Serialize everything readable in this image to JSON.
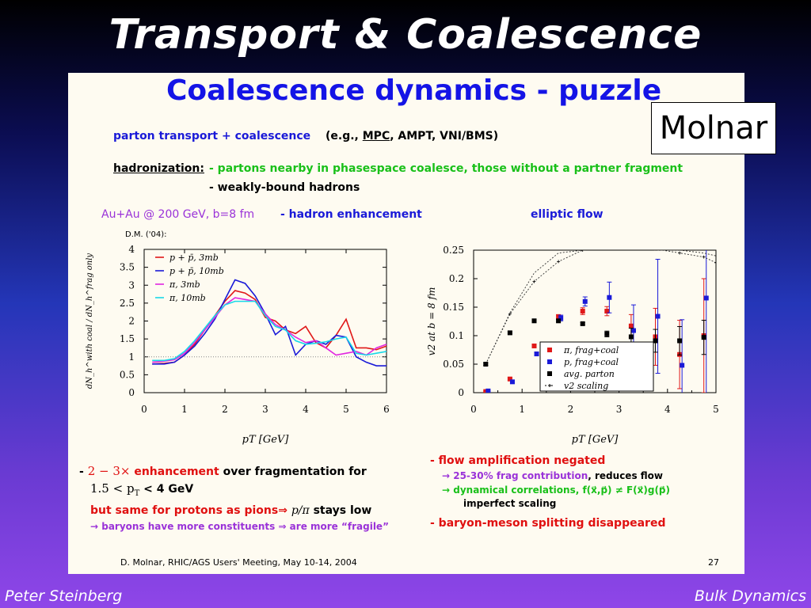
{
  "slide_title": "Transport & Coalescence",
  "label_box": "Molnar",
  "panel": {
    "title": "Coalescence dynamics - puzzle",
    "line1_a": "parton transport + coalescence",
    "line1_b": "(e.g.,",
    "line1_mpc": "MPC",
    "line1_c": ", AMPT, VNI/BMS)",
    "hadron_label": "hadronization:",
    "hadron_1": "- partons nearby in phasespace coalesce, those without a partner fragment",
    "hadron_2": "- weakly-bound hadrons",
    "left_head_a": "Au+Au @ 200 GeV, b=8 fm",
    "left_head_b": "- hadron enhancement",
    "right_head": "elliptic flow",
    "credit": "D.M. ('04):",
    "left_b1_a": "- ",
    "left_b1_b": "2 − 3×",
    "left_b1_c": "enhancement",
    "left_b1_d": "over fragmentation for",
    "left_b1_e": "1.5 < p",
    "left_b1_e_sub": "T",
    "left_b1_f": "< 4 GeV",
    "left_b2_a": "but same for protons as pions⇒",
    "left_b2_b": "p/π",
    "left_b2_c": "stays low",
    "left_b3": "→ baryons have more constituents ⇒ are more “fragile”",
    "right_b1": "- flow amplification negated",
    "right_b2_a": "→ 25-30% frag contribution",
    "right_b2_b": ", reduces flow",
    "right_b3": "→ dynamical correlations, f(x⃗,p⃗) ≠ F(x⃗)g(p⃗)",
    "right_b4": "imperfect scaling",
    "right_b5": "- baryon-meson splitting disappeared",
    "footer_credit": "D. Molnar, RHIC/AGS Users' Meeting, May 10-14, 2004",
    "page_num": "27"
  },
  "footer": {
    "left": "Peter Steinberg",
    "right": "Bulk Dynamics"
  },
  "chart_data": [
    {
      "type": "line",
      "xlabel": "pT [GeV]",
      "ylabel": "dN_h^with coal / dN_h^frag only",
      "xlim": [
        0,
        6
      ],
      "ylim": [
        0,
        4
      ],
      "xticks": [
        "0",
        "1",
        "2",
        "3",
        "4",
        "5",
        "6"
      ],
      "yticks": [
        "0",
        "0.5",
        "1",
        "1.5",
        "2",
        "2.5",
        "3",
        "3.5",
        "4"
      ],
      "reference_line": 1,
      "series": [
        {
          "name": "p + p̄, 3mb",
          "color": "#e01818",
          "x": [
            0.2,
            0.5,
            0.75,
            1.0,
            1.25,
            1.5,
            1.75,
            2.0,
            2.25,
            2.5,
            2.75,
            3.0,
            3.25,
            3.5,
            3.75,
            4.0,
            4.25,
            4.5,
            4.75,
            5.0,
            5.25,
            5.5,
            5.75,
            6.0
          ],
          "y": [
            0.8,
            0.82,
            0.85,
            1.05,
            1.35,
            1.75,
            2.15,
            2.55,
            2.85,
            2.78,
            2.6,
            2.1,
            2.0,
            1.75,
            1.65,
            1.85,
            1.4,
            1.25,
            1.6,
            2.05,
            1.25,
            1.25,
            1.2,
            1.3
          ]
        },
        {
          "name": "p + p̄, 10mb",
          "color": "#1a1ad8",
          "x": [
            0.2,
            0.5,
            0.75,
            1.0,
            1.25,
            1.5,
            1.75,
            2.0,
            2.25,
            2.5,
            2.75,
            3.0,
            3.25,
            3.5,
            3.75,
            4.0,
            4.25,
            4.5,
            4.75,
            5.0,
            5.25,
            5.5,
            5.75,
            6.0
          ],
          "y": [
            0.8,
            0.8,
            0.85,
            1.05,
            1.3,
            1.65,
            2.05,
            2.6,
            3.15,
            3.05,
            2.7,
            2.2,
            1.62,
            1.85,
            1.05,
            1.35,
            1.45,
            1.35,
            1.6,
            1.55,
            1.0,
            0.85,
            0.75,
            0.75
          ]
        },
        {
          "name": "π, 3mb",
          "color": "#e026e0",
          "x": [
            0.2,
            0.5,
            0.75,
            1.0,
            1.25,
            1.5,
            1.75,
            2.0,
            2.25,
            2.5,
            2.75,
            3.0,
            3.25,
            3.5,
            3.75,
            4.0,
            4.25,
            4.5,
            4.75,
            5.0,
            5.25,
            5.5,
            5.75,
            6.0
          ],
          "y": [
            0.85,
            0.88,
            0.92,
            1.1,
            1.4,
            1.75,
            2.1,
            2.45,
            2.65,
            2.6,
            2.55,
            2.2,
            1.9,
            1.75,
            1.55,
            1.4,
            1.45,
            1.25,
            1.05,
            1.1,
            1.15,
            1.05,
            1.25,
            1.35
          ]
        },
        {
          "name": "π, 10mb",
          "color": "#18d8e8",
          "x": [
            0.2,
            0.5,
            0.75,
            1.0,
            1.25,
            1.5,
            1.75,
            2.0,
            2.25,
            2.5,
            2.75,
            3.0,
            3.25,
            3.5,
            3.75,
            4.0,
            4.25,
            4.5,
            4.75,
            5.0,
            5.25,
            5.5,
            5.75,
            6.0
          ],
          "y": [
            0.9,
            0.9,
            0.95,
            1.15,
            1.45,
            1.8,
            2.15,
            2.45,
            2.55,
            2.55,
            2.55,
            2.15,
            1.85,
            1.75,
            1.45,
            1.35,
            1.38,
            1.42,
            1.5,
            1.55,
            1.1,
            1.05,
            1.1,
            1.15
          ]
        }
      ]
    },
    {
      "type": "scatter",
      "xlabel": "pT [GeV]",
      "ylabel": "v2 at b = 8 fm",
      "xlim": [
        0,
        5
      ],
      "ylim": [
        0,
        0.25
      ],
      "xticks": [
        "0",
        "0.5",
        "1",
        "1.5",
        "2",
        "2.5",
        "3",
        "3.5",
        "4",
        "4.5",
        "5"
      ],
      "yticks": [
        "0",
        "0.05",
        "0.1",
        "0.15",
        "0.2",
        "0.25"
      ],
      "series": [
        {
          "name": "π, frag+coal",
          "color": "#e01818",
          "marker": "square",
          "points": [
            [
              0.25,
              0.002,
              0.001
            ],
            [
              0.75,
              0.024,
              0.002
            ],
            [
              1.25,
              0.082,
              0.003
            ],
            [
              1.75,
              0.133,
              0.004
            ],
            [
              2.25,
              0.143,
              0.006
            ],
            [
              2.75,
              0.143,
              0.008
            ],
            [
              3.25,
              0.117,
              0.02
            ],
            [
              3.75,
              0.098,
              0.05
            ],
            [
              4.25,
              0.067,
              0.06
            ],
            [
              4.75,
              0.1,
              0.1
            ]
          ]
        },
        {
          "name": "p, frag+coal",
          "color": "#1a1ad8",
          "marker": "square",
          "points": [
            [
              0.3,
              0.003,
              0.001
            ],
            [
              0.8,
              0.019,
              0.002
            ],
            [
              1.3,
              0.068,
              0.003
            ],
            [
              1.8,
              0.131,
              0.005
            ],
            [
              2.3,
              0.16,
              0.008
            ],
            [
              2.8,
              0.167,
              0.027
            ],
            [
              3.3,
              0.109,
              0.045
            ],
            [
              3.8,
              0.134,
              0.1
            ],
            [
              4.3,
              0.048,
              0.08
            ],
            [
              4.8,
              0.166,
              0.17
            ]
          ]
        },
        {
          "name": "avg. parton",
          "color": "#000000",
          "marker": "square",
          "points": [
            [
              0.25,
              0.05,
              0.002
            ],
            [
              0.75,
              0.105,
              0.002
            ],
            [
              1.25,
              0.126,
              0.002
            ],
            [
              1.75,
              0.126,
              0.002
            ],
            [
              2.25,
              0.121,
              0.002
            ],
            [
              2.75,
              0.103,
              0.005
            ],
            [
              3.25,
              0.098,
              0.015
            ],
            [
              3.75,
              0.091,
              0.02
            ],
            [
              4.25,
              0.091,
              0.025
            ],
            [
              4.75,
              0.097,
              0.03
            ]
          ]
        },
        {
          "name": "v2 scaling",
          "color": "#000000",
          "marker": "plus",
          "dashed": true,
          "x": [
            0.25,
            0.75,
            1.25,
            1.75,
            2.25,
            2.75,
            3.25,
            3.75,
            4.25,
            4.75,
            5.0
          ],
          "y": [
            0.05,
            0.138,
            0.195,
            0.23,
            0.25,
            0.255,
            0.253,
            0.252,
            0.245,
            0.238,
            0.228
          ],
          "x2": [
            0.25,
            0.75,
            1.25,
            1.75,
            2.25,
            2.75,
            3.25,
            3.75,
            4.25,
            4.75,
            5.0
          ],
          "y2": [
            0.05,
            0.14,
            0.21,
            0.245,
            0.25,
            0.255,
            0.255,
            0.25,
            0.25,
            0.245,
            0.24
          ]
        }
      ]
    }
  ]
}
